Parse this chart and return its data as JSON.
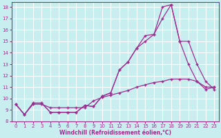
{
  "xlabel": "Windchill (Refroidissement éolien,°C)",
  "bg_color": "#c8eef0",
  "line_color": "#9b2d8e",
  "grid_color": "#ffffff",
  "xlim": [
    -0.5,
    23.5
  ],
  "ylim": [
    8,
    18.4
  ],
  "yticks": [
    8,
    9,
    10,
    11,
    12,
    13,
    14,
    15,
    16,
    17,
    18
  ],
  "xticks": [
    0,
    1,
    2,
    3,
    4,
    5,
    6,
    7,
    8,
    9,
    10,
    11,
    12,
    13,
    14,
    15,
    16,
    17,
    18,
    19,
    20,
    21,
    22,
    23
  ],
  "line1_x": [
    0,
    1,
    2,
    3,
    4,
    5,
    6,
    7,
    8,
    9,
    10,
    11,
    12,
    13,
    14,
    15,
    16,
    17,
    18,
    19,
    20,
    21,
    22,
    23
  ],
  "line1_y": [
    9.5,
    8.6,
    9.6,
    9.6,
    8.8,
    8.8,
    8.8,
    8.8,
    9.4,
    9.3,
    10.2,
    10.5,
    12.5,
    13.2,
    14.4,
    15.5,
    15.6,
    18.0,
    18.2,
    15.0,
    13.0,
    11.5,
    10.8,
    11.0
  ],
  "line2_x": [
    0,
    1,
    2,
    3,
    4,
    5,
    6,
    7,
    8,
    9,
    10,
    11,
    12,
    13,
    14,
    15,
    16,
    17,
    18,
    19,
    20,
    21,
    22,
    23
  ],
  "line2_y": [
    9.5,
    8.6,
    9.6,
    9.6,
    8.8,
    8.8,
    8.8,
    8.8,
    9.4,
    9.3,
    10.2,
    10.5,
    12.5,
    13.2,
    14.4,
    15.0,
    15.6,
    17.0,
    18.2,
    15.0,
    15.0,
    13.0,
    11.5,
    10.8
  ],
  "line3_x": [
    0,
    1,
    2,
    3,
    4,
    5,
    6,
    7,
    8,
    9,
    10,
    11,
    12,
    13,
    14,
    15,
    16,
    17,
    18,
    19,
    20,
    21,
    22,
    23
  ],
  "line3_y": [
    9.5,
    8.6,
    9.5,
    9.5,
    9.2,
    9.2,
    9.2,
    9.2,
    9.2,
    9.8,
    10.1,
    10.3,
    10.5,
    10.7,
    11.0,
    11.2,
    11.4,
    11.5,
    11.7,
    11.7,
    11.7,
    11.5,
    11.0,
    11.0
  ]
}
